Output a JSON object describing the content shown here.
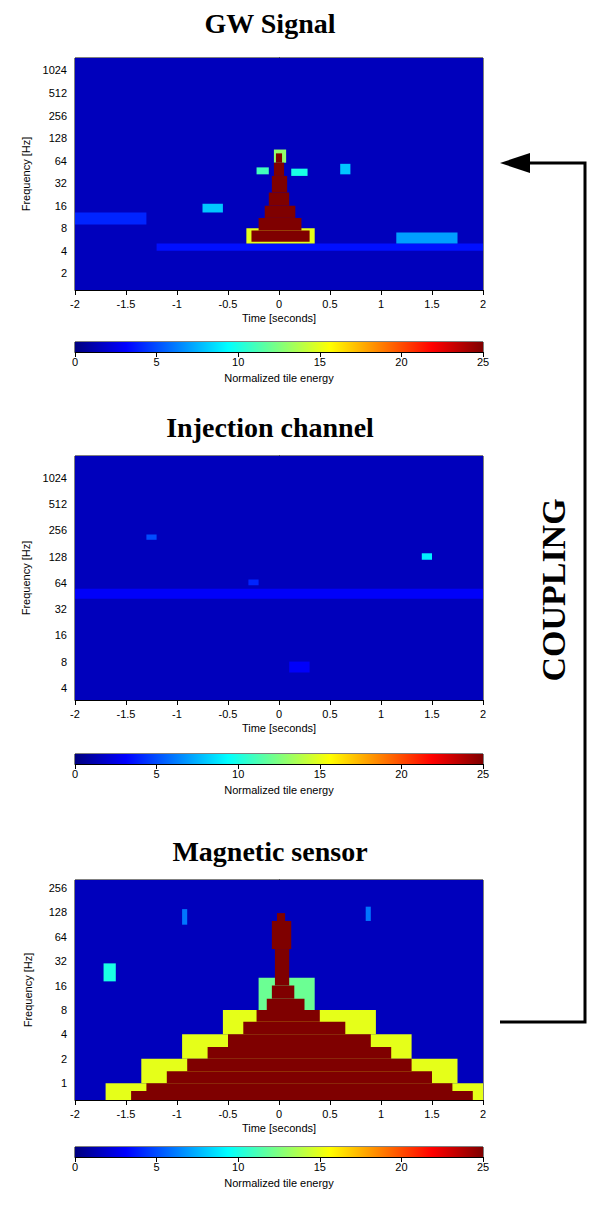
{
  "chart_data": [
    {
      "type": "heatmap",
      "title": "GW Signal",
      "x_label": "Time [seconds]",
      "y_label": "Frequency [Hz]",
      "xlim": [
        -2,
        2
      ],
      "xticks": [
        -2,
        -1.5,
        -1,
        -0.5,
        0,
        0.5,
        1,
        1.5,
        2
      ],
      "ylim": [
        1.2,
        1500
      ],
      "yticks": [
        2,
        4,
        8,
        16,
        32,
        64,
        128,
        256,
        512,
        1024
      ],
      "log": "y",
      "grid": false,
      "tiles": [
        [
          -2,
          2,
          1.2,
          1500,
          1.5
        ],
        [
          -1.2,
          2,
          4,
          5,
          3.5
        ],
        [
          -2,
          -1.3,
          9,
          13,
          4
        ],
        [
          -0.75,
          -0.55,
          13,
          17,
          8
        ],
        [
          1.15,
          1.75,
          5,
          7,
          7
        ],
        [
          0.6,
          0.7,
          42,
          58,
          8
        ],
        [
          -0.22,
          -0.1,
          42,
          52,
          11
        ],
        [
          0.12,
          0.28,
          40,
          50,
          10
        ],
        [
          -0.32,
          0.35,
          5,
          8,
          15
        ],
        [
          -0.05,
          0.07,
          60,
          90,
          13
        ],
        [
          -0.27,
          0.3,
          5.3,
          7.5,
          25
        ],
        [
          -0.2,
          0.22,
          7.5,
          11,
          25
        ],
        [
          -0.14,
          0.16,
          11,
          16,
          25
        ],
        [
          -0.1,
          0.1,
          16,
          24,
          25
        ],
        [
          -0.07,
          0.08,
          24,
          40,
          25
        ],
        [
          -0.05,
          0.05,
          40,
          60,
          25
        ],
        [
          -0.03,
          0.03,
          60,
          80,
          25
        ]
      ],
      "colorbar_label": "Normalized tile energy",
      "clim": [
        0,
        25
      ],
      "cticks": [
        0,
        5,
        10,
        15,
        20,
        25
      ]
    },
    {
      "type": "heatmap",
      "title": "Injection channel",
      "x_label": "Time [seconds]",
      "y_label": "Frequency [Hz]",
      "xlim": [
        -2,
        2
      ],
      "xticks": [
        -2,
        -1.5,
        -1,
        -0.5,
        0,
        0.5,
        1,
        1.5,
        2
      ],
      "ylim": [
        2.9,
        1830
      ],
      "yticks": [
        4,
        8,
        16,
        32,
        64,
        128,
        256,
        512,
        1024
      ],
      "log": "y",
      "grid": false,
      "tiles": [
        [
          -2,
          2,
          2.9,
          1830,
          1.5
        ],
        [
          -2,
          2,
          42,
          55,
          3
        ],
        [
          0.1,
          0.3,
          6,
          8,
          3
        ],
        [
          -0.3,
          -0.2,
          60,
          70,
          4
        ],
        [
          -1.3,
          -1.2,
          200,
          230,
          5
        ],
        [
          1.4,
          1.5,
          118,
          140,
          9
        ]
      ],
      "colorbar_label": "Normalized tile energy",
      "clim": [
        0,
        25
      ],
      "cticks": [
        0,
        5,
        10,
        15,
        20,
        25
      ]
    },
    {
      "type": "heatmap",
      "title": "Magnetic sensor",
      "x_label": "Time [seconds]",
      "y_label": "Frequency [Hz]",
      "xlim": [
        -2,
        2
      ],
      "xticks": [
        -2,
        -1.5,
        -1,
        -0.5,
        0,
        0.5,
        1,
        1.5,
        2
      ],
      "ylim": [
        0.62,
        320
      ],
      "yticks": [
        1,
        2,
        4,
        8,
        16,
        32,
        64,
        128,
        256
      ],
      "log": "y",
      "grid": false,
      "tiles": [
        [
          -2,
          2,
          0.62,
          320,
          1.5
        ],
        [
          -1.72,
          -1.6,
          18,
          30,
          10
        ],
        [
          -0.95,
          -0.9,
          90,
          140,
          6
        ],
        [
          0.85,
          0.9,
          100,
          150,
          6
        ],
        [
          -1.7,
          2,
          0.62,
          1.0,
          15
        ],
        [
          -1.35,
          1.75,
          1.0,
          2.0,
          15
        ],
        [
          -0.95,
          1.3,
          2.0,
          4,
          15
        ],
        [
          -0.55,
          0.95,
          4,
          8,
          15
        ],
        [
          -0.2,
          0.35,
          8,
          20,
          12
        ],
        [
          -1.45,
          1.9,
          0.62,
          0.8,
          25
        ],
        [
          -1.3,
          1.7,
          0.8,
          1.0,
          25
        ],
        [
          -1.1,
          1.5,
          1.0,
          1.4,
          25
        ],
        [
          -0.9,
          1.3,
          1.4,
          2.0,
          25
        ],
        [
          -0.7,
          1.1,
          2.0,
          2.8,
          25
        ],
        [
          -0.5,
          0.9,
          2.8,
          4,
          25
        ],
        [
          -0.35,
          0.65,
          4,
          5.7,
          25
        ],
        [
          -0.22,
          0.4,
          5.7,
          8,
          25
        ],
        [
          -0.12,
          0.25,
          8,
          11,
          25
        ],
        [
          -0.07,
          0.15,
          11,
          16,
          25
        ],
        [
          -0.04,
          0.1,
          16,
          45,
          25
        ],
        [
          -0.07,
          0.12,
          45,
          100,
          25
        ],
        [
          -0.02,
          0.06,
          100,
          125,
          25
        ]
      ],
      "colorbar_label": "Normalized tile energy",
      "clim": [
        0,
        25
      ],
      "cticks": [
        0,
        5,
        10,
        15,
        20,
        25
      ]
    }
  ],
  "annotations": [
    "COUPLING"
  ]
}
